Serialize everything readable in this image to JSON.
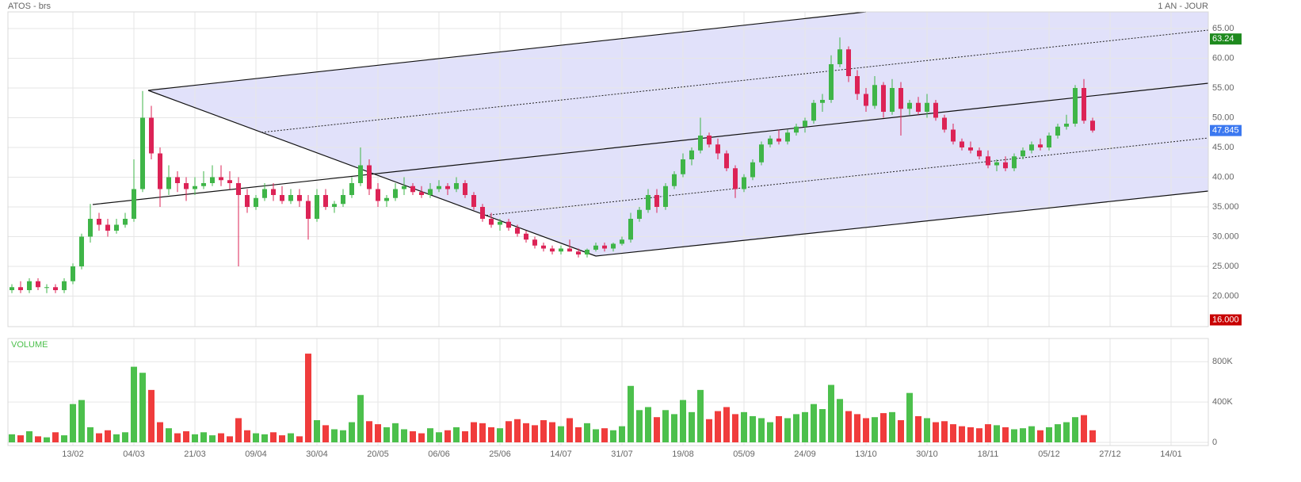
{
  "chart_data": [
    {
      "type": "candlestick",
      "title": "ATOS - brs",
      "subtitle": "1 AN - JOUR",
      "up_color": "#3fb548",
      "down_color": "#dc2356",
      "ylim": [
        15,
        67.8
      ],
      "yticks": [
        {
          "value": 65,
          "label": "65.00"
        },
        {
          "value": 60,
          "label": "60.00"
        },
        {
          "value": 55,
          "label": "55.00"
        },
        {
          "value": 50,
          "label": "50.00"
        },
        {
          "value": 45,
          "label": "45.00"
        },
        {
          "value": 40,
          "label": "40.00"
        },
        {
          "value": 35,
          "label": "35.000"
        },
        {
          "value": 30,
          "label": "30.000"
        },
        {
          "value": 25,
          "label": "25.000"
        },
        {
          "value": 20,
          "label": "20.000"
        }
      ],
      "xlim": [
        -0.5,
        137.7
      ],
      "xticks": [
        {
          "value": 7,
          "label": "13/02"
        },
        {
          "value": 14,
          "label": "04/03"
        },
        {
          "value": 21,
          "label": "21/03"
        },
        {
          "value": 28,
          "label": "09/04"
        },
        {
          "value": 35,
          "label": "30/04"
        },
        {
          "value": 42,
          "label": "20/05"
        },
        {
          "value": 49,
          "label": "06/06"
        },
        {
          "value": 56,
          "label": "25/06"
        },
        {
          "value": 63,
          "label": "14/07"
        },
        {
          "value": 70,
          "label": "31/07"
        },
        {
          "value": 77,
          "label": "19/08"
        },
        {
          "value": 84,
          "label": "05/09"
        },
        {
          "value": 91,
          "label": "24/09"
        },
        {
          "value": 98,
          "label": "13/10"
        },
        {
          "value": 105,
          "label": "30/10"
        },
        {
          "value": 112,
          "label": "18/11"
        },
        {
          "value": 119,
          "label": "05/12"
        },
        {
          "value": 126,
          "label": "27/12"
        },
        {
          "value": 133,
          "label": "14/01"
        }
      ],
      "price_markers": [
        {
          "value": 63.24,
          "label": "63.24",
          "color": "#1e8a1e"
        },
        {
          "value": 47.845,
          "label": "47.845",
          "color": "#3b78f0"
        },
        {
          "value": 16,
          "label": "16.000",
          "color": "#c80000"
        }
      ],
      "ohlc": [
        [
          21,
          22,
          20.5,
          21.5
        ],
        [
          21.5,
          22.5,
          20.5,
          21
        ],
        [
          21,
          23,
          20.5,
          22.5
        ],
        [
          22.5,
          23,
          21,
          21.5
        ],
        [
          21.5,
          22,
          20.5,
          21.5
        ],
        [
          21.5,
          22,
          20.5,
          21
        ],
        [
          21,
          23,
          20.5,
          22.5
        ],
        [
          22.5,
          25.5,
          22,
          25
        ],
        [
          25,
          30.5,
          24.5,
          30
        ],
        [
          30,
          35.5,
          29,
          33
        ],
        [
          33,
          34,
          31,
          32
        ],
        [
          32,
          33,
          30,
          31
        ],
        [
          31,
          33,
          30.5,
          32
        ],
        [
          32,
          34,
          31.5,
          33
        ],
        [
          33,
          43,
          32.5,
          38
        ],
        [
          38,
          54.5,
          37.5,
          50
        ],
        [
          50,
          52,
          43,
          44
        ],
        [
          44,
          45,
          35,
          38
        ],
        [
          38,
          42,
          37,
          40
        ],
        [
          40,
          41,
          37.5,
          39
        ],
        [
          39,
          40,
          36,
          38
        ],
        [
          38,
          40,
          37,
          38.5
        ],
        [
          38.5,
          41,
          38,
          39
        ],
        [
          39,
          42,
          38.5,
          40
        ],
        [
          40,
          42,
          38.5,
          39.5
        ],
        [
          39.5,
          41,
          38,
          39
        ],
        [
          39,
          40,
          25,
          37
        ],
        [
          37,
          38,
          34,
          35
        ],
        [
          35,
          37,
          34.5,
          36.5
        ],
        [
          36.5,
          39,
          36,
          38
        ],
        [
          38,
          39,
          36,
          37
        ],
        [
          37,
          38.5,
          35.5,
          36
        ],
        [
          36,
          38,
          35.5,
          37
        ],
        [
          37,
          38,
          35,
          36
        ],
        [
          36,
          37,
          29.5,
          33
        ],
        [
          33,
          38,
          32.5,
          37
        ],
        [
          37,
          38,
          34.5,
          35
        ],
        [
          35,
          36,
          34,
          35.5
        ],
        [
          35.5,
          38,
          35,
          37
        ],
        [
          37,
          40,
          36.5,
          39
        ],
        [
          39,
          45,
          38.5,
          42
        ],
        [
          42,
          43,
          37,
          38
        ],
        [
          38,
          39,
          35,
          36
        ],
        [
          36,
          37,
          35,
          36.5
        ],
        [
          36.5,
          39,
          36,
          38
        ],
        [
          38,
          40,
          37,
          38.5
        ],
        [
          38.5,
          39,
          37,
          37.5
        ],
        [
          37.5,
          38.5,
          36.5,
          37
        ],
        [
          37,
          39,
          36.5,
          38
        ],
        [
          38,
          39.5,
          37.5,
          38.5
        ],
        [
          38.5,
          39,
          37,
          38
        ],
        [
          38,
          40,
          37.5,
          39
        ],
        [
          39,
          39.5,
          36.5,
          37
        ],
        [
          37,
          37.5,
          34.5,
          35
        ],
        [
          35,
          35.5,
          32.5,
          33
        ],
        [
          33,
          34,
          31.5,
          32
        ],
        [
          32,
          33,
          31,
          32.5
        ],
        [
          32.5,
          33,
          31,
          31.5
        ],
        [
          31.5,
          32,
          30,
          30.5
        ],
        [
          30.5,
          31,
          29,
          29.5
        ],
        [
          29.5,
          30,
          28,
          28.5
        ],
        [
          28.5,
          29,
          27.5,
          28
        ],
        [
          28,
          28.5,
          27,
          27.5
        ],
        [
          27.5,
          28.5,
          27,
          28
        ],
        [
          28,
          29.5,
          27.5,
          27.5
        ],
        [
          27.5,
          28,
          26.5,
          27
        ],
        [
          27,
          28,
          26.5,
          27.8
        ],
        [
          27.8,
          29,
          27.5,
          28.5
        ],
        [
          28.5,
          29,
          27.5,
          28
        ],
        [
          28,
          29,
          27.5,
          28.8
        ],
        [
          28.8,
          30,
          28.5,
          29.5
        ],
        [
          29.5,
          34,
          29,
          33
        ],
        [
          33,
          35,
          32.5,
          34.5
        ],
        [
          34.5,
          38,
          34,
          37
        ],
        [
          37,
          38,
          34,
          35
        ],
        [
          35,
          39,
          34.5,
          38.5
        ],
        [
          38.5,
          41,
          38,
          40.5
        ],
        [
          40.5,
          44,
          40,
          43
        ],
        [
          43,
          45,
          42,
          44.5
        ],
        [
          44.5,
          50,
          44,
          47
        ],
        [
          47,
          47.5,
          45,
          45.5
        ],
        [
          45.5,
          46.5,
          43,
          44
        ],
        [
          44,
          44.5,
          41,
          41.5
        ],
        [
          41.5,
          42,
          36.5,
          38
        ],
        [
          38,
          40.5,
          37.5,
          40
        ],
        [
          40,
          43,
          39.5,
          42.5
        ],
        [
          42.5,
          46,
          42,
          45.5
        ],
        [
          45.5,
          47,
          45,
          46.5
        ],
        [
          46.5,
          48,
          45.5,
          46
        ],
        [
          46,
          48,
          45.5,
          47.5
        ],
        [
          47.5,
          49,
          47,
          48.5
        ],
        [
          48.5,
          50,
          47.5,
          49.5
        ],
        [
          49.5,
          53,
          49,
          52.5
        ],
        [
          52.5,
          54,
          51,
          53
        ],
        [
          53,
          60.5,
          52.5,
          59
        ],
        [
          59,
          63.5,
          58.5,
          61.5
        ],
        [
          61.5,
          62,
          56,
          57
        ],
        [
          57,
          58,
          53,
          54
        ],
        [
          54,
          55,
          51,
          52
        ],
        [
          52,
          57,
          51.5,
          55.5
        ],
        [
          55.5,
          56,
          50,
          51
        ],
        [
          51,
          56.5,
          50.5,
          55
        ],
        [
          55,
          56,
          47,
          51.5
        ],
        [
          51.5,
          53,
          50.5,
          52.5
        ],
        [
          52.5,
          53.5,
          50.5,
          51
        ],
        [
          51,
          54,
          50,
          52.5
        ],
        [
          52.5,
          53,
          49.5,
          50
        ],
        [
          50,
          50.5,
          47.5,
          48
        ],
        [
          48,
          49,
          45.5,
          46
        ],
        [
          46,
          46.5,
          44.5,
          45
        ],
        [
          45,
          46,
          44,
          44.5
        ],
        [
          44.5,
          45,
          43,
          43.5
        ],
        [
          43.5,
          44.5,
          41.5,
          42
        ],
        [
          42,
          43,
          41,
          42.5
        ],
        [
          42.5,
          43.5,
          41,
          41.5
        ],
        [
          41.5,
          44,
          41,
          43.5
        ],
        [
          43.5,
          45,
          43,
          44.5
        ],
        [
          44.5,
          46,
          44,
          45.5
        ],
        [
          45.5,
          46.5,
          44.5,
          45
        ],
        [
          45,
          47.5,
          44.5,
          47
        ],
        [
          47,
          49,
          46.5,
          48.5
        ],
        [
          48.5,
          50.5,
          48,
          49
        ],
        [
          49,
          55.5,
          48.5,
          55
        ],
        [
          55,
          56.5,
          49,
          49.5
        ],
        [
          49.5,
          50,
          47.5,
          47.845
        ]
      ]
    },
    {
      "type": "bar",
      "title": "VOLUME",
      "up_color": "#4cc04c",
      "down_color": "#f03c3c",
      "ylim": [
        0,
        1030000
      ],
      "yticks": [
        {
          "value": 0,
          "label": "0"
        },
        {
          "value": 400000,
          "label": "400K"
        },
        {
          "value": 800000,
          "label": "800K"
        }
      ],
      "values": [
        80000,
        70000,
        110000,
        60000,
        50000,
        100000,
        70000,
        380000,
        420000,
        150000,
        90000,
        120000,
        80000,
        100000,
        750000,
        690000,
        520000,
        200000,
        140000,
        90000,
        110000,
        80000,
        100000,
        70000,
        90000,
        60000,
        240000,
        120000,
        90000,
        80000,
        100000,
        70000,
        90000,
        60000,
        880000,
        220000,
        170000,
        130000,
        120000,
        200000,
        470000,
        210000,
        180000,
        150000,
        190000,
        130000,
        110000,
        90000,
        140000,
        100000,
        120000,
        150000,
        110000,
        200000,
        190000,
        150000,
        140000,
        210000,
        230000,
        190000,
        170000,
        220000,
        200000,
        160000,
        240000,
        150000,
        190000,
        130000,
        140000,
        120000,
        160000,
        560000,
        320000,
        350000,
        250000,
        320000,
        280000,
        420000,
        300000,
        520000,
        230000,
        310000,
        350000,
        280000,
        300000,
        260000,
        240000,
        200000,
        260000,
        240000,
        280000,
        300000,
        380000,
        330000,
        570000,
        430000,
        310000,
        280000,
        240000,
        250000,
        290000,
        300000,
        220000,
        490000,
        260000,
        240000,
        200000,
        210000,
        180000,
        160000,
        150000,
        140000,
        180000,
        170000,
        150000,
        130000,
        140000,
        160000,
        120000,
        150000,
        180000,
        200000,
        250000,
        270000,
        120000
      ]
    }
  ]
}
